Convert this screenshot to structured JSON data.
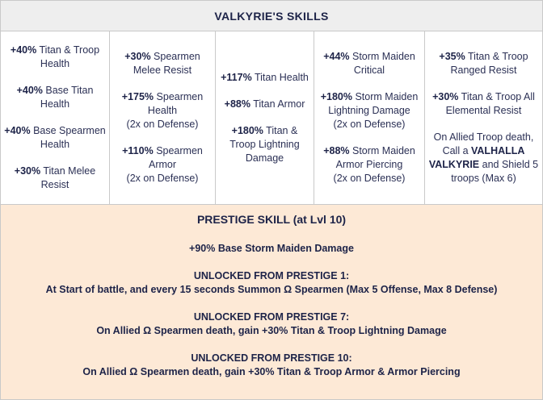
{
  "header": {
    "title": "VALKYRIE'S SKILLS"
  },
  "skills": [
    [
      {
        "bold": "+40%",
        "text": " Titan & Troop Health"
      },
      {
        "bold": "+40%",
        "text": " Base Titan Health"
      },
      {
        "bold": "+40%",
        "text": " Base Spearmen Health"
      },
      {
        "bold": "+30%",
        "text": " Titan Melee Resist"
      }
    ],
    [
      {
        "bold": "+30%",
        "text": " Spearmen Melee Resist"
      },
      {
        "bold": "+175%",
        "text": " Spearmen Health",
        "note": "(2x on Defense)"
      },
      {
        "bold": "+110%",
        "text": " Spearmen Armor",
        "note": "(2x on Defense)"
      }
    ],
    [
      {
        "bold": "+117%",
        "text": " Titan Health"
      },
      {
        "bold": "+88%",
        "text": " Titan Armor"
      },
      {
        "bold": "+180%",
        "text": " Titan & Troop Lightning Damage"
      }
    ],
    [
      {
        "bold": "+44%",
        "text": " Storm Maiden Critical"
      },
      {
        "bold": "+180%",
        "text": " Storm Maiden Lightning Damage",
        "note": "(2x on Defense)"
      },
      {
        "bold": "+88%",
        "text": " Storm Maiden Armor Piercing",
        "note": "(2x on Defense)"
      }
    ],
    [
      {
        "bold": "+35%",
        "text": " Titan & Troop Ranged Resist"
      },
      {
        "bold": "+30%",
        "text": " Titan & Troop All Elemental Resist"
      },
      {
        "pre": "On Allied Troop death, Call a ",
        "bold": "VALHALLA VALKYRIE",
        "text": " and Shield 5 troops (Max 6)"
      }
    ]
  ],
  "prestige": {
    "title": "PRESTIGE SKILL (at Lvl 10)",
    "base": "+90% Base Storm Maiden Damage",
    "p1_heading": "UNLOCKED FROM PRESTIGE 1:",
    "p1_text": "At Start of battle, and every 15 seconds Summon Ω Spearmen (Max 5 Offense, Max 8 Defense)",
    "p7_heading": "UNLOCKED FROM PRESTIGE 7:",
    "p7_text": "On Allied Ω Spearmen death, gain +30% Titan & Troop Lightning Damage",
    "p10_heading": "UNLOCKED FROM PRESTIGE 10:",
    "p10_text": "On Allied Ω Spearmen death, gain +30% Titan & Troop Armor & Armor Piercing"
  }
}
